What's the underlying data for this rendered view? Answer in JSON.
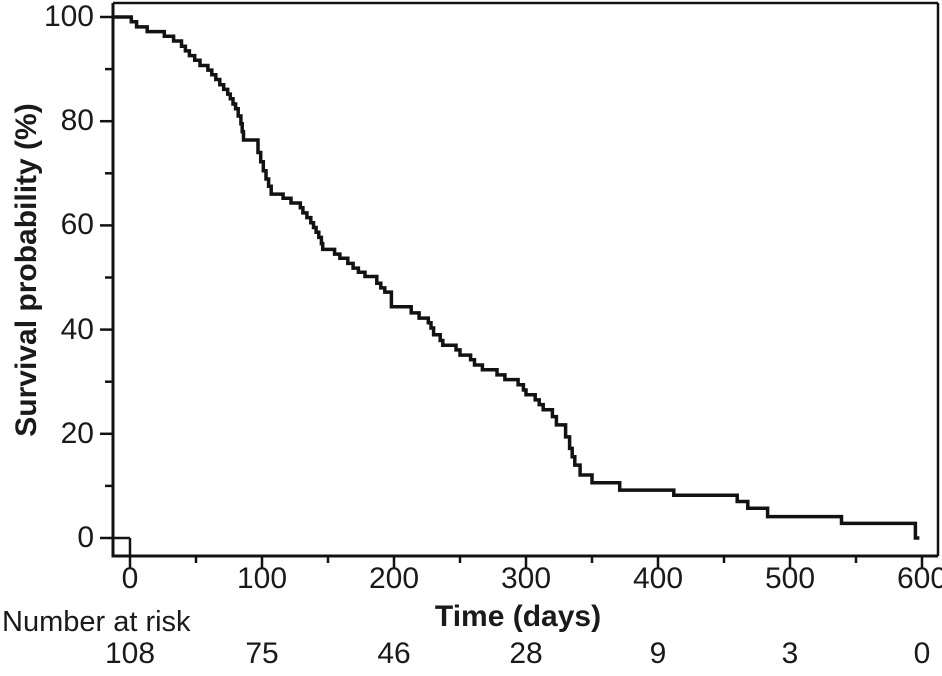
{
  "chart_data": {
    "type": "line",
    "subtype": "kaplan-meier-step-curve",
    "title": "",
    "xlabel": "Time (days)",
    "ylabel": "Survival probability (%)",
    "xlim": [
      0,
      600
    ],
    "ylim": [
      0,
      100
    ],
    "grid": false,
    "legend": "none",
    "x_major_ticks": [
      0,
      100,
      200,
      300,
      400,
      500,
      600
    ],
    "x_minor_ticks": [
      50,
      150,
      250,
      350,
      450,
      550
    ],
    "y_major_ticks": [
      0,
      20,
      40,
      60,
      80,
      100
    ],
    "y_minor_ticks": [
      10,
      30,
      50,
      70,
      90
    ],
    "curve_color": "#121212",
    "series": [
      {
        "name": "survival-curve",
        "steps": [
          [
            0,
            100
          ],
          [
            1,
            99.1
          ],
          [
            5,
            98.1
          ],
          [
            13,
            97.2
          ],
          [
            26,
            96.3
          ],
          [
            33,
            95.4
          ],
          [
            39,
            94.4
          ],
          [
            42,
            93.5
          ],
          [
            45,
            92.6
          ],
          [
            49,
            91.7
          ],
          [
            53,
            90.7
          ],
          [
            59,
            89.8
          ],
          [
            62,
            88.9
          ],
          [
            65,
            88.0
          ],
          [
            68,
            87.0
          ],
          [
            71,
            86.1
          ],
          [
            74,
            85.2
          ],
          [
            76,
            84.3
          ],
          [
            78,
            83.3
          ],
          [
            80,
            82.4
          ],
          [
            82,
            81.0
          ],
          [
            84,
            79.5
          ],
          [
            85,
            78.0
          ],
          [
            86,
            76.4
          ],
          [
            97,
            74.0
          ],
          [
            99,
            72.2
          ],
          [
            101,
            70.5
          ],
          [
            103,
            68.9
          ],
          [
            105,
            67.5
          ],
          [
            107,
            66.0
          ],
          [
            116,
            65.2
          ],
          [
            122,
            64.3
          ],
          [
            129,
            63.4
          ],
          [
            131,
            62.4
          ],
          [
            134,
            61.5
          ],
          [
            137,
            60.5
          ],
          [
            139,
            59.6
          ],
          [
            141,
            58.7
          ],
          [
            143,
            57.7
          ],
          [
            145,
            56.5
          ],
          [
            146,
            55.4
          ],
          [
            155,
            54.5
          ],
          [
            159,
            53.7
          ],
          [
            165,
            52.7
          ],
          [
            169,
            51.8
          ],
          [
            173,
            51.0
          ],
          [
            178,
            50.2
          ],
          [
            187,
            48.9
          ],
          [
            190,
            48.0
          ],
          [
            193,
            47.2
          ],
          [
            198,
            44.4
          ],
          [
            213,
            43.2
          ],
          [
            219,
            42.2
          ],
          [
            226,
            41.3
          ],
          [
            228,
            40.3
          ],
          [
            230,
            39.0
          ],
          [
            235,
            37.9
          ],
          [
            237,
            37.0
          ],
          [
            247,
            36.1
          ],
          [
            250,
            35.1
          ],
          [
            258,
            34.2
          ],
          [
            261,
            33.2
          ],
          [
            267,
            32.3
          ],
          [
            278,
            31.3
          ],
          [
            284,
            30.4
          ],
          [
            294,
            29.4
          ],
          [
            298,
            28.4
          ],
          [
            300,
            27.5
          ],
          [
            307,
            26.5
          ],
          [
            310,
            25.6
          ],
          [
            313,
            24.6
          ],
          [
            320,
            23.3
          ],
          [
            323,
            21.7
          ],
          [
            330,
            19.4
          ],
          [
            333,
            17.2
          ],
          [
            335,
            15.6
          ],
          [
            337,
            14.0
          ],
          [
            341,
            12.1
          ],
          [
            350,
            10.6
          ],
          [
            371,
            9.2
          ],
          [
            412,
            8.2
          ],
          [
            460,
            7.0
          ],
          [
            468,
            5.7
          ],
          [
            483,
            4.1
          ],
          [
            539,
            2.8
          ],
          [
            595,
            0
          ],
          [
            598,
            0
          ]
        ]
      }
    ],
    "number_at_risk": {
      "label": "Number at risk",
      "times": [
        0,
        100,
        200,
        300,
        400,
        500,
        600
      ],
      "counts": [
        108,
        75,
        46,
        28,
        9,
        3,
        0
      ]
    }
  }
}
